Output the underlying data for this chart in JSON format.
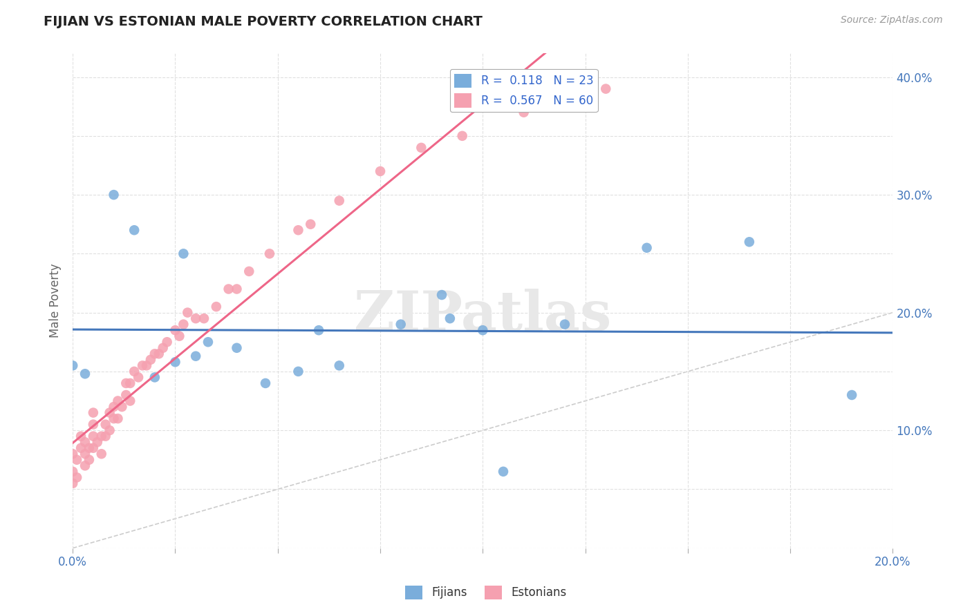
{
  "title": "FIJIAN VS ESTONIAN MALE POVERTY CORRELATION CHART",
  "source": "Source: ZipAtlas.com",
  "ylabel": "Male Poverty",
  "xlim": [
    0.0,
    0.2
  ],
  "ylim": [
    0.0,
    0.42
  ],
  "fijian_color": "#7aaddb",
  "estonian_color": "#f5a0b0",
  "trend_color_fijian": "#4477bb",
  "trend_color_estonian": "#ee6688",
  "diagonal_color": "#cccccc",
  "R_fijian": 0.118,
  "N_fijian": 23,
  "R_estonian": 0.567,
  "N_estonian": 60,
  "fijian_x": [
    0.0,
    0.003,
    0.01,
    0.015,
    0.02,
    0.025,
    0.027,
    0.03,
    0.033,
    0.04,
    0.047,
    0.055,
    0.06,
    0.065,
    0.08,
    0.09,
    0.092,
    0.1,
    0.105,
    0.12,
    0.14,
    0.165,
    0.19
  ],
  "fijian_y": [
    0.155,
    0.148,
    0.3,
    0.27,
    0.145,
    0.158,
    0.25,
    0.163,
    0.175,
    0.17,
    0.14,
    0.15,
    0.185,
    0.155,
    0.19,
    0.215,
    0.195,
    0.185,
    0.065,
    0.19,
    0.255,
    0.26,
    0.13
  ],
  "estonian_x": [
    0.0,
    0.0,
    0.0,
    0.001,
    0.001,
    0.002,
    0.002,
    0.003,
    0.003,
    0.003,
    0.004,
    0.004,
    0.005,
    0.005,
    0.005,
    0.005,
    0.006,
    0.007,
    0.007,
    0.008,
    0.008,
    0.009,
    0.009,
    0.01,
    0.01,
    0.011,
    0.011,
    0.012,
    0.013,
    0.013,
    0.014,
    0.014,
    0.015,
    0.016,
    0.017,
    0.018,
    0.019,
    0.02,
    0.021,
    0.022,
    0.023,
    0.025,
    0.026,
    0.027,
    0.028,
    0.03,
    0.032,
    0.035,
    0.038,
    0.04,
    0.043,
    0.048,
    0.055,
    0.058,
    0.065,
    0.075,
    0.085,
    0.095,
    0.11,
    0.13
  ],
  "estonian_y": [
    0.055,
    0.065,
    0.08,
    0.06,
    0.075,
    0.085,
    0.095,
    0.07,
    0.08,
    0.09,
    0.075,
    0.085,
    0.085,
    0.095,
    0.105,
    0.115,
    0.09,
    0.08,
    0.095,
    0.095,
    0.105,
    0.1,
    0.115,
    0.11,
    0.12,
    0.11,
    0.125,
    0.12,
    0.13,
    0.14,
    0.125,
    0.14,
    0.15,
    0.145,
    0.155,
    0.155,
    0.16,
    0.165,
    0.165,
    0.17,
    0.175,
    0.185,
    0.18,
    0.19,
    0.2,
    0.195,
    0.195,
    0.205,
    0.22,
    0.22,
    0.235,
    0.25,
    0.27,
    0.275,
    0.295,
    0.32,
    0.34,
    0.35,
    0.37,
    0.39
  ],
  "watermark_text": "ZIPatlas",
  "background_color": "#ffffff",
  "grid_color": "#e0e0e0"
}
